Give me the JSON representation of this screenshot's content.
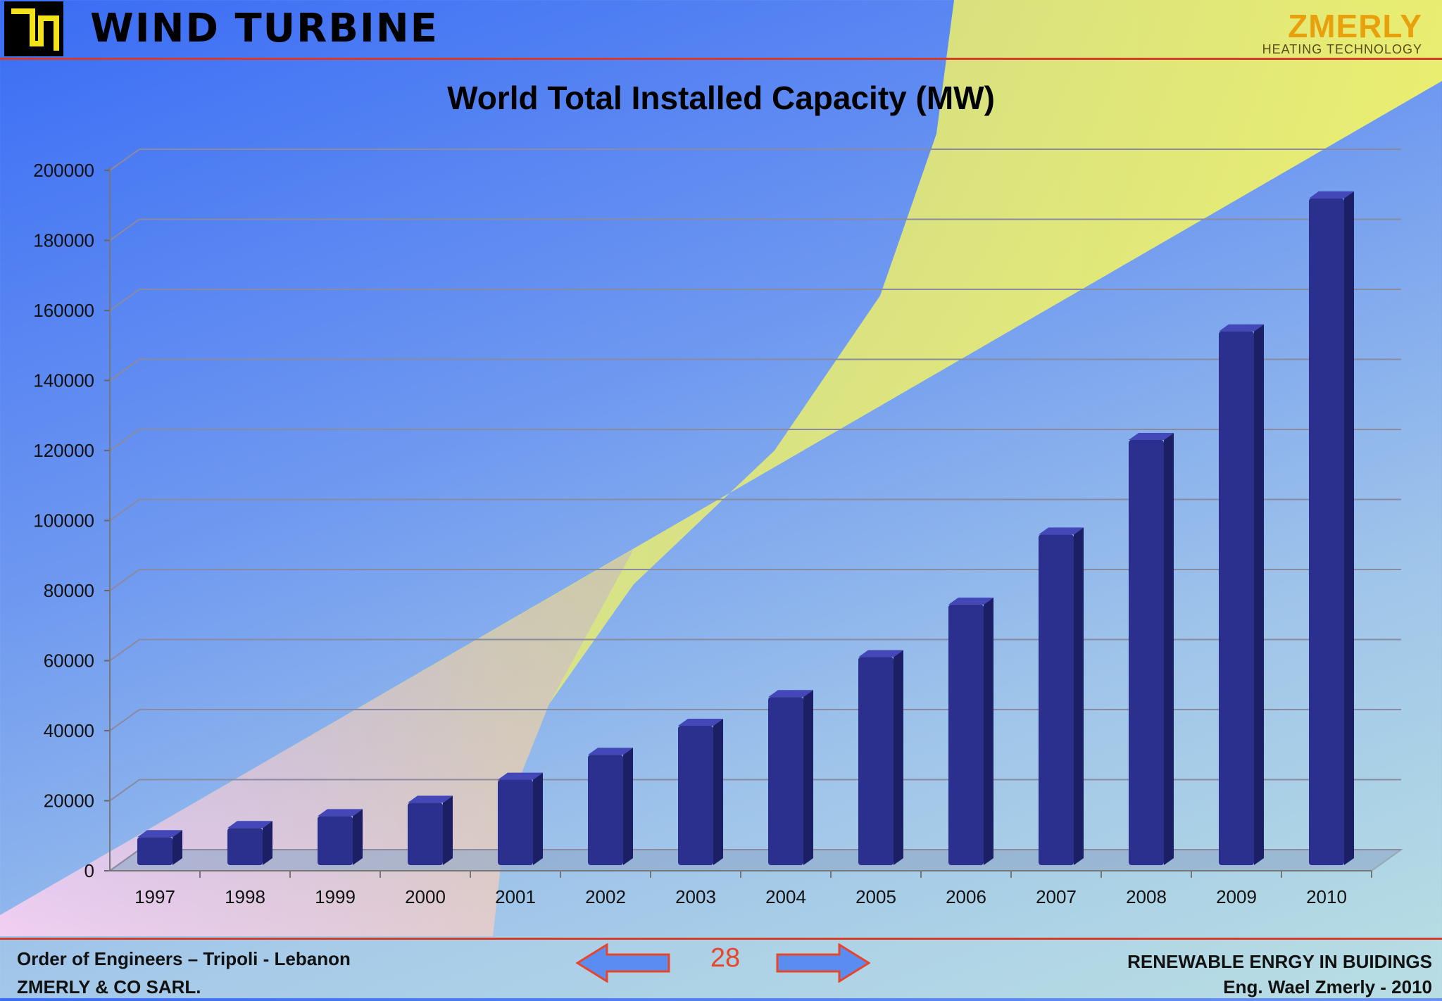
{
  "header": {
    "title": "WIND TURBINE",
    "brand": "ZMERLY",
    "brand_sub": "HEATING TECHNOLOGY"
  },
  "colors": {
    "bar": "#2b2f8e",
    "rule": "#d83a28",
    "brand": "#e8a10c",
    "page_number": "#e8442a"
  },
  "icons": {
    "logo": "company-logo-icon",
    "prev": "left-arrow-icon",
    "next": "right-arrow-icon"
  },
  "chart_data": {
    "type": "bar",
    "title": "World Total Installed Capacity (MW)",
    "xlabel": "",
    "ylabel": "",
    "categories": [
      "1997",
      "1998",
      "1999",
      "2000",
      "2001",
      "2002",
      "2003",
      "2004",
      "2005",
      "2006",
      "2007",
      "2008",
      "2009",
      "2010"
    ],
    "values": [
      7600,
      10200,
      13600,
      17400,
      24000,
      31100,
      39400,
      47600,
      59000,
      74000,
      94000,
      121000,
      152000,
      190000
    ],
    "ylim": [
      0,
      200000
    ],
    "yticks": [
      "0",
      "20000",
      "40000",
      "60000",
      "80000",
      "100000",
      "120000",
      "140000",
      "160000",
      "180000",
      "200000"
    ],
    "grid": true,
    "legend": "none",
    "style": "3d"
  },
  "footer": {
    "left_line1": "Order of Engineers – Tripoli - Lebanon",
    "left_line2": "ZMERLY & CO SARL.",
    "page_number": "28",
    "right_line1": "RENEWABLE ENRGY IN BUIDINGS",
    "right_line2": "Eng. Wael Zmerly - 2010"
  }
}
